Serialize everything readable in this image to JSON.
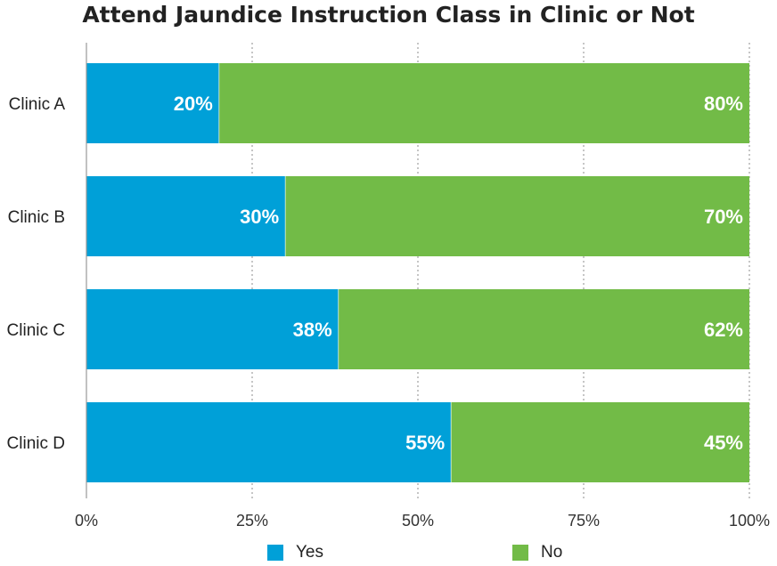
{
  "chart_data": {
    "type": "bar",
    "orientation": "horizontal",
    "stacked": true,
    "title": "Attend Jaundice Instruction Class in Clinic or Not",
    "categories": [
      "Clinic A",
      "Clinic B",
      "Clinic C",
      "Clinic D"
    ],
    "series": [
      {
        "name": "Yes",
        "color": "#00a0d8",
        "values": [
          20,
          30,
          38,
          55
        ],
        "labels": [
          "20%",
          "30%",
          "38%",
          "55%"
        ]
      },
      {
        "name": "No",
        "color": "#72bb47",
        "values": [
          80,
          70,
          62,
          45
        ],
        "labels": [
          "80%",
          "70%",
          "62%",
          "45%"
        ]
      }
    ],
    "xlim": [
      0,
      100
    ],
    "xticks": [
      0,
      25,
      50,
      75,
      100
    ],
    "xtick_labels": [
      "0%",
      "25%",
      "50%",
      "75%",
      "100%"
    ],
    "grid": "vertical dotted",
    "legend": "bottom-center",
    "xlabel": "",
    "ylabel": ""
  }
}
